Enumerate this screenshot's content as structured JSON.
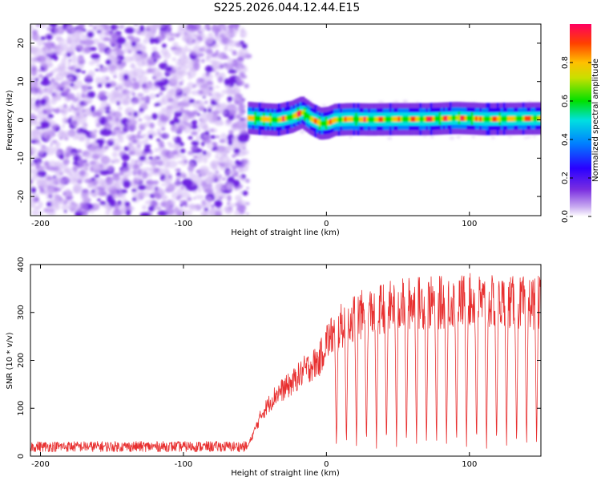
{
  "title": "S225.2026.044.12.44.E15",
  "colorbar": {
    "label": "Normalized spectral amplitude",
    "ticks": [
      "0.0",
      "0.2",
      "0.4",
      "0.6",
      "0.8"
    ],
    "tick_values": [
      0.0,
      0.2,
      0.4,
      0.6,
      0.8
    ],
    "range": [
      0.0,
      1.0
    ],
    "colors": [
      "#c8aaf0",
      "#7a2ee0",
      "#2a00ff",
      "#0080ff",
      "#00e0e0",
      "#00e000",
      "#c8e000",
      "#ffc000",
      "#ff4000",
      "#ff0060"
    ]
  },
  "chart_data": [
    {
      "type": "heatmap",
      "name": "spectrogram",
      "xlabel": "Height of straight line (km)",
      "ylabel": "Frequency (Hz)",
      "xlim": [
        -207,
        150
      ],
      "ylim": [
        -25,
        25
      ],
      "xticks": [
        -200,
        -100,
        0,
        100
      ],
      "xtick_labels": [
        "-200",
        "-100",
        "0",
        "100"
      ],
      "yticks": [
        -20,
        -10,
        0,
        10,
        20
      ],
      "ytick_labels": [
        "-20",
        "-10",
        "0",
        "10",
        "20"
      ],
      "noise_region_x": [
        -207,
        -55
      ],
      "signal_region_x": [
        -55,
        150
      ],
      "carrier_track": {
        "x": [
          -55,
          -45,
          -35,
          -25,
          -18,
          -12,
          -5,
          0,
          5,
          15,
          30,
          50,
          70,
          90,
          110,
          130,
          150
        ],
        "freq": [
          0.5,
          0.2,
          0.0,
          0.8,
          2.0,
          0.3,
          -1.0,
          -0.8,
          0.0,
          0.2,
          0.1,
          0.2,
          0.2,
          0.5,
          0.2,
          0.3,
          0.4
        ]
      }
    },
    {
      "type": "line",
      "name": "snr",
      "xlabel": "Height of straight line (km)",
      "ylabel": "SNR (10 * v/v)",
      "xlim": [
        -207,
        150
      ],
      "ylim": [
        0,
        400
      ],
      "xticks": [
        -200,
        -100,
        0,
        100
      ],
      "xtick_labels": [
        "-200",
        "-100",
        "0",
        "100"
      ],
      "yticks": [
        0,
        100,
        200,
        300,
        400
      ],
      "ytick_labels": [
        "0",
        "100",
        "200",
        "300",
        "400"
      ],
      "series": [
        {
          "name": "SNR",
          "color": "#e83030",
          "envelope": {
            "x": [
              -207,
              -55,
              -45,
              -35,
              -25,
              -15,
              -5,
              0,
              10,
              20,
              30,
              40,
              60,
              80,
              100,
              120,
              150
            ],
            "mean": [
              20,
              20,
              90,
              130,
              150,
              180,
              200,
              240,
              270,
              290,
              300,
              310,
              320,
              320,
              325,
              320,
              320
            ]
          },
          "dropouts_x": [
            7,
            14,
            21,
            28,
            35,
            42,
            49,
            56,
            63,
            70,
            77,
            84,
            91,
            98,
            105,
            112,
            119,
            126,
            133,
            140,
            147
          ],
          "dropout_min": 15
        }
      ]
    }
  ]
}
